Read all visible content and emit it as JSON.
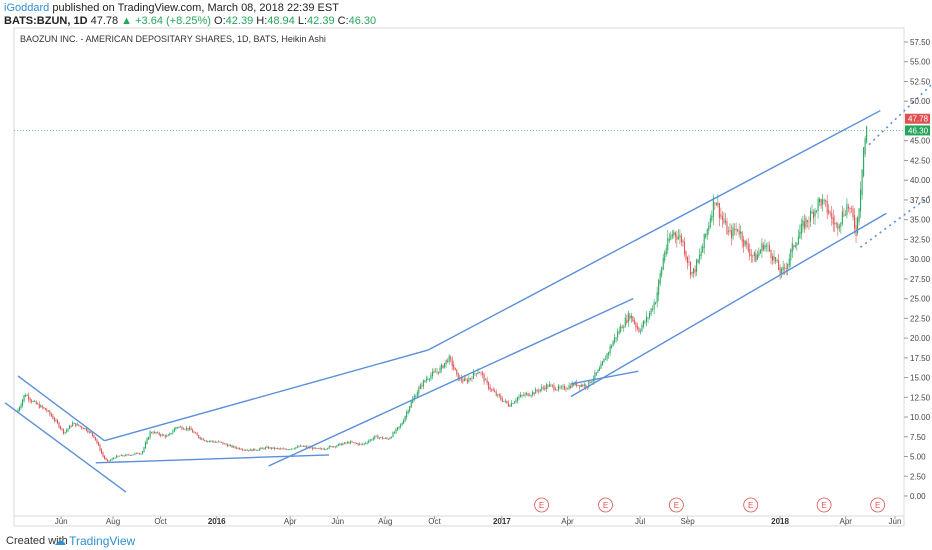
{
  "header": {
    "author": "iGoddard",
    "published": "published on TradingView.com, March 08, 2018 22:39 EST",
    "symbol": "BATS:BZUN, 1D",
    "last": "47.78",
    "change": "+3.64 (+8.25%)",
    "open_label": "O:",
    "open": "42.39",
    "high_label": "H:",
    "high": "48.94",
    "low_label": "L:",
    "low": "42.39",
    "close_label": "C:",
    "close": "46.30"
  },
  "chart_title": "BAOZUN INC. - AMERICAN DEPOSITARY SHARES, 1D, BATS, Heikin Ashi",
  "footer": {
    "created": "Created with",
    "brand": "TradingView"
  },
  "colors": {
    "up": "#26a65b",
    "down": "#e05252",
    "trendline": "#5b8fd9",
    "price_tag_red": "#e05252",
    "price_tag_green": "#26a65b"
  },
  "chart_data": {
    "type": "candlestick",
    "chart_style": "Heikin Ashi",
    "ylim": [
      0,
      57.5
    ],
    "y_ticks": [
      "57.50",
      "55.00",
      "52.50",
      "50.00",
      "45.00",
      "42.50",
      "40.00",
      "37.50",
      "35.00",
      "32.50",
      "30.00",
      "27.50",
      "25.00",
      "22.50",
      "20.00",
      "17.50",
      "15.00",
      "12.50",
      "10.00",
      "7.50",
      "5.00",
      "2.50",
      "0.00"
    ],
    "x_ticks": [
      {
        "label": "Jun",
        "t": 0.05,
        "bold": false
      },
      {
        "label": "Aug",
        "t": 0.11,
        "bold": false
      },
      {
        "label": "Oct",
        "t": 0.165,
        "bold": false
      },
      {
        "label": "2016",
        "t": 0.23,
        "bold": true
      },
      {
        "label": "Apr",
        "t": 0.315,
        "bold": false
      },
      {
        "label": "Jun",
        "t": 0.37,
        "bold": false
      },
      {
        "label": "Aug",
        "t": 0.425,
        "bold": false
      },
      {
        "label": "Oct",
        "t": 0.482,
        "bold": false
      },
      {
        "label": "2017",
        "t": 0.56,
        "bold": true
      },
      {
        "label": "Apr",
        "t": 0.636,
        "bold": false
      },
      {
        "label": "Jul",
        "t": 0.72,
        "bold": false
      },
      {
        "label": "Sep",
        "t": 0.775,
        "bold": false
      },
      {
        "label": "2018",
        "t": 0.882,
        "bold": true
      },
      {
        "label": "Apr",
        "t": 0.958,
        "bold": false
      },
      {
        "label": "Jun",
        "t": 1.015,
        "bold": false
      }
    ],
    "earnings_markers": {
      "label": "E",
      "t": [
        0.606,
        0.68,
        0.762,
        0.848,
        0.933,
        0.995
      ]
    },
    "price_tags": [
      {
        "value": 47.78,
        "label": "47.78",
        "color": "#e05252"
      },
      {
        "value": 46.3,
        "label": "46.30",
        "color": "#26a65b"
      }
    ],
    "price_path": [
      {
        "t": 0.0,
        "p": 10.5
      },
      {
        "t": 0.01,
        "p": 13.0
      },
      {
        "t": 0.02,
        "p": 11.8
      },
      {
        "t": 0.035,
        "p": 10.8
      },
      {
        "t": 0.045,
        "p": 9.5
      },
      {
        "t": 0.055,
        "p": 8.0
      },
      {
        "t": 0.065,
        "p": 9.2
      },
      {
        "t": 0.08,
        "p": 8.5
      },
      {
        "t": 0.09,
        "p": 7.5
      },
      {
        "t": 0.1,
        "p": 5.0
      },
      {
        "t": 0.105,
        "p": 4.3
      },
      {
        "t": 0.115,
        "p": 5.0
      },
      {
        "t": 0.13,
        "p": 5.2
      },
      {
        "t": 0.145,
        "p": 5.5
      },
      {
        "t": 0.155,
        "p": 8.2
      },
      {
        "t": 0.165,
        "p": 7.8
      },
      {
        "t": 0.175,
        "p": 7.5
      },
      {
        "t": 0.185,
        "p": 8.8
      },
      {
        "t": 0.2,
        "p": 8.5
      },
      {
        "t": 0.21,
        "p": 7.5
      },
      {
        "t": 0.22,
        "p": 7.0
      },
      {
        "t": 0.235,
        "p": 6.8
      },
      {
        "t": 0.25,
        "p": 6.2
      },
      {
        "t": 0.27,
        "p": 5.8
      },
      {
        "t": 0.29,
        "p": 6.1
      },
      {
        "t": 0.31,
        "p": 5.9
      },
      {
        "t": 0.33,
        "p": 6.3
      },
      {
        "t": 0.35,
        "p": 5.9
      },
      {
        "t": 0.37,
        "p": 6.4
      },
      {
        "t": 0.385,
        "p": 6.8
      },
      {
        "t": 0.4,
        "p": 6.5
      },
      {
        "t": 0.415,
        "p": 7.5
      },
      {
        "t": 0.43,
        "p": 7.2
      },
      {
        "t": 0.445,
        "p": 9.0
      },
      {
        "t": 0.455,
        "p": 11.5
      },
      {
        "t": 0.465,
        "p": 13.5
      },
      {
        "t": 0.475,
        "p": 15.0
      },
      {
        "t": 0.49,
        "p": 16.0
      },
      {
        "t": 0.5,
        "p": 17.5
      },
      {
        "t": 0.505,
        "p": 16.5
      },
      {
        "t": 0.51,
        "p": 15.0
      },
      {
        "t": 0.52,
        "p": 14.5
      },
      {
        "t": 0.535,
        "p": 16.0
      },
      {
        "t": 0.545,
        "p": 14.0
      },
      {
        "t": 0.555,
        "p": 12.8
      },
      {
        "t": 0.57,
        "p": 11.5
      },
      {
        "t": 0.58,
        "p": 12.5
      },
      {
        "t": 0.6,
        "p": 13.2
      },
      {
        "t": 0.615,
        "p": 14.0
      },
      {
        "t": 0.63,
        "p": 13.5
      },
      {
        "t": 0.645,
        "p": 14.2
      },
      {
        "t": 0.66,
        "p": 14.0
      },
      {
        "t": 0.675,
        "p": 16.0
      },
      {
        "t": 0.69,
        "p": 19.5
      },
      {
        "t": 0.7,
        "p": 21.5
      },
      {
        "t": 0.71,
        "p": 23.0
      },
      {
        "t": 0.72,
        "p": 21.0
      },
      {
        "t": 0.73,
        "p": 22.5
      },
      {
        "t": 0.74,
        "p": 25.0
      },
      {
        "t": 0.75,
        "p": 31.0
      },
      {
        "t": 0.76,
        "p": 33.5
      },
      {
        "t": 0.77,
        "p": 32.5
      },
      {
        "t": 0.775,
        "p": 30.5
      },
      {
        "t": 0.782,
        "p": 28.0
      },
      {
        "t": 0.79,
        "p": 30.0
      },
      {
        "t": 0.8,
        "p": 34.0
      },
      {
        "t": 0.808,
        "p": 38.0
      },
      {
        "t": 0.815,
        "p": 35.5
      },
      {
        "t": 0.825,
        "p": 33.0
      },
      {
        "t": 0.835,
        "p": 34.0
      },
      {
        "t": 0.845,
        "p": 31.5
      },
      {
        "t": 0.855,
        "p": 30.0
      },
      {
        "t": 0.865,
        "p": 32.0
      },
      {
        "t": 0.875,
        "p": 30.5
      },
      {
        "t": 0.885,
        "p": 28.0
      },
      {
        "t": 0.892,
        "p": 29.5
      },
      {
        "t": 0.9,
        "p": 32.0
      },
      {
        "t": 0.912,
        "p": 34.5
      },
      {
        "t": 0.922,
        "p": 36.0
      },
      {
        "t": 0.93,
        "p": 37.5
      },
      {
        "t": 0.94,
        "p": 36.0
      },
      {
        "t": 0.948,
        "p": 34.0
      },
      {
        "t": 0.955,
        "p": 35.5
      },
      {
        "t": 0.962,
        "p": 37.0
      },
      {
        "t": 0.968,
        "p": 35.0
      },
      {
        "t": 0.972,
        "p": 33.5
      },
      {
        "t": 0.976,
        "p": 38.0
      },
      {
        "t": 0.98,
        "p": 44.0
      },
      {
        "t": 0.984,
        "p": 46.3
      }
    ],
    "trendlines": [
      {
        "t1": 0.0,
        "p1": 15.2,
        "t2": 0.1,
        "p2": 7.0,
        "style": "solid"
      },
      {
        "t1": -0.015,
        "p1": 11.8,
        "t2": 0.125,
        "p2": 0.5,
        "style": "solid"
      },
      {
        "t1": 0.1,
        "p1": 7.0,
        "t2": 0.475,
        "p2": 18.5,
        "style": "solid"
      },
      {
        "t1": 0.09,
        "p1": 4.2,
        "t2": 0.36,
        "p2": 5.2,
        "style": "solid"
      },
      {
        "t1": 0.29,
        "p1": 3.8,
        "t2": 0.712,
        "p2": 25.0,
        "style": "solid"
      },
      {
        "t1": 0.475,
        "p1": 18.5,
        "t2": 0.998,
        "p2": 48.8,
        "style": "solid"
      },
      {
        "t1": 0.64,
        "p1": 12.6,
        "t2": 1.005,
        "p2": 35.8,
        "style": "solid"
      },
      {
        "t1": 0.64,
        "p1": 14.2,
        "t2": 0.718,
        "p2": 15.8,
        "style": "solid"
      },
      {
        "t1": 0.985,
        "p1": 44.5,
        "t2": 1.08,
        "p2": 54.5,
        "style": "dotted"
      },
      {
        "t1": 0.975,
        "p1": 31.5,
        "t2": 1.08,
        "p2": 40.0,
        "style": "dotted"
      }
    ]
  }
}
